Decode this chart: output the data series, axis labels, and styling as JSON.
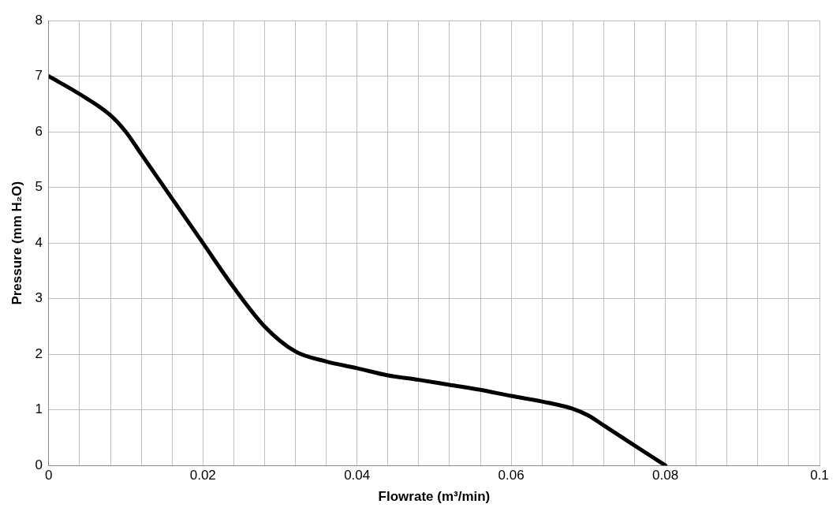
{
  "chart_data": {
    "type": "line",
    "xlabel": "Flowrate (m³/min)",
    "ylabel": "Pressure (mm H₂O)",
    "x": [
      0,
      0.004,
      0.008,
      0.01,
      0.012,
      0.016,
      0.02,
      0.024,
      0.028,
      0.032,
      0.036,
      0.04,
      0.044,
      0.048,
      0.052,
      0.056,
      0.06,
      0.064,
      0.068,
      0.07,
      0.072,
      0.076,
      0.08
    ],
    "series": [
      {
        "color": "#000000",
        "values": [
          7,
          6.68,
          6.3,
          6.0,
          5.6,
          4.8,
          4.0,
          3.2,
          2.5,
          2.05,
          1.87,
          1.75,
          1.62,
          1.54,
          1.45,
          1.36,
          1.25,
          1.15,
          1.02,
          0.9,
          0.72,
          0.36,
          0
        ]
      }
    ],
    "xlim": [
      0,
      0.1
    ],
    "xticks": [
      0,
      {
        "value": 0.004,
        "label": null
      },
      {
        "value": 0.008,
        "label": null
      },
      {
        "value": 0.012,
        "label": null
      },
      {
        "value": 0.016,
        "label": null
      },
      0.02,
      {
        "value": 0.024,
        "label": null
      },
      {
        "value": 0.028,
        "label": null
      },
      {
        "value": 0.032,
        "label": null
      },
      {
        "value": 0.036,
        "label": null
      },
      0.04,
      {
        "value": 0.044,
        "label": null
      },
      {
        "value": 0.048,
        "label": null
      },
      {
        "value": 0.052,
        "label": null
      },
      {
        "value": 0.056,
        "label": null
      },
      0.06,
      {
        "value": 0.064,
        "label": null
      },
      {
        "value": 0.068,
        "label": null
      },
      {
        "value": 0.072,
        "label": null
      },
      {
        "value": 0.076,
        "label": null
      },
      0.08,
      {
        "value": 0.084,
        "label": null
      },
      {
        "value": 0.088,
        "label": null
      },
      {
        "value": 0.092,
        "label": null
      },
      {
        "value": 0.096,
        "label": null
      },
      0.1
    ],
    "ylim": [
      0,
      8
    ],
    "yticks": [
      0,
      1,
      2,
      3,
      4,
      5,
      6,
      7,
      8
    ],
    "grid": true,
    "legend": false,
    "marker": "none",
    "line_style": "solid"
  }
}
